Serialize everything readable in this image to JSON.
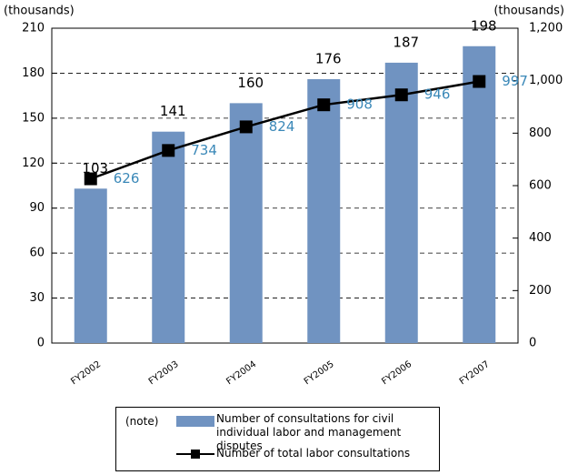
{
  "chart_data": {
    "type": "bar-line",
    "note": "(note)",
    "y_label": "(thousands)",
    "y2_label": "(thousands)",
    "categories": [
      "FY2002",
      "FY2003",
      "FY2004",
      "FY2005",
      "FY2006",
      "FY2007"
    ],
    "series": [
      {
        "name": "Number of consultations for civil individual labor and management disputes",
        "type": "bar",
        "color": "#7093c1",
        "label_color": "#000000",
        "values": [
          103,
          141,
          160,
          176,
          187,
          198
        ]
      },
      {
        "name": "Number of total labor consultations",
        "type": "line",
        "axis": "y2",
        "color": "#000000",
        "label_color": "#3a88b8",
        "values": [
          626,
          734,
          824,
          908,
          946,
          997
        ]
      }
    ],
    "ylim": [
      0,
      210
    ],
    "yticks": [
      0,
      30,
      60,
      90,
      120,
      150,
      180,
      210
    ],
    "y2lim": [
      0,
      1200
    ],
    "y2ticks": [
      0,
      200,
      400,
      600,
      800,
      {
        "value": 1000,
        "label": "1,000"
      },
      {
        "value": 1200,
        "label": "1,200"
      }
    ],
    "grid": true
  }
}
